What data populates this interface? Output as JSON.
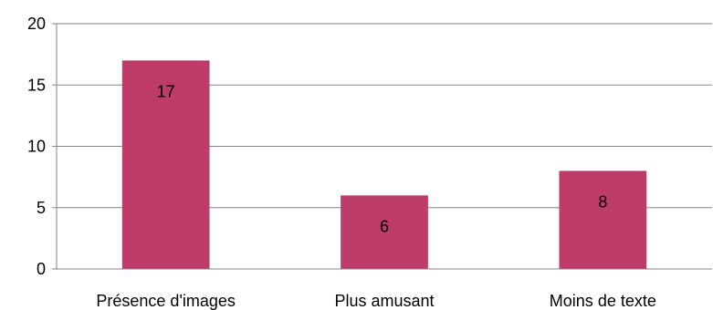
{
  "chart_data": {
    "type": "bar",
    "title": "",
    "xlabel": "",
    "ylabel": "",
    "categories": [
      "Présence d'images",
      "Plus amusant",
      "Moins de texte"
    ],
    "values": [
      17,
      6,
      8
    ],
    "data_labels": [
      "17",
      "6",
      "8"
    ],
    "ylim": [
      0,
      20
    ],
    "yticks": [
      0,
      5,
      10,
      15,
      20
    ],
    "ytick_labels": [
      "0",
      "5",
      "10",
      "15",
      "20"
    ],
    "grid": true,
    "legend": "none",
    "bar_color": "#BE3C6A",
    "grid_color": "#868686",
    "axis_color": "#868686"
  }
}
